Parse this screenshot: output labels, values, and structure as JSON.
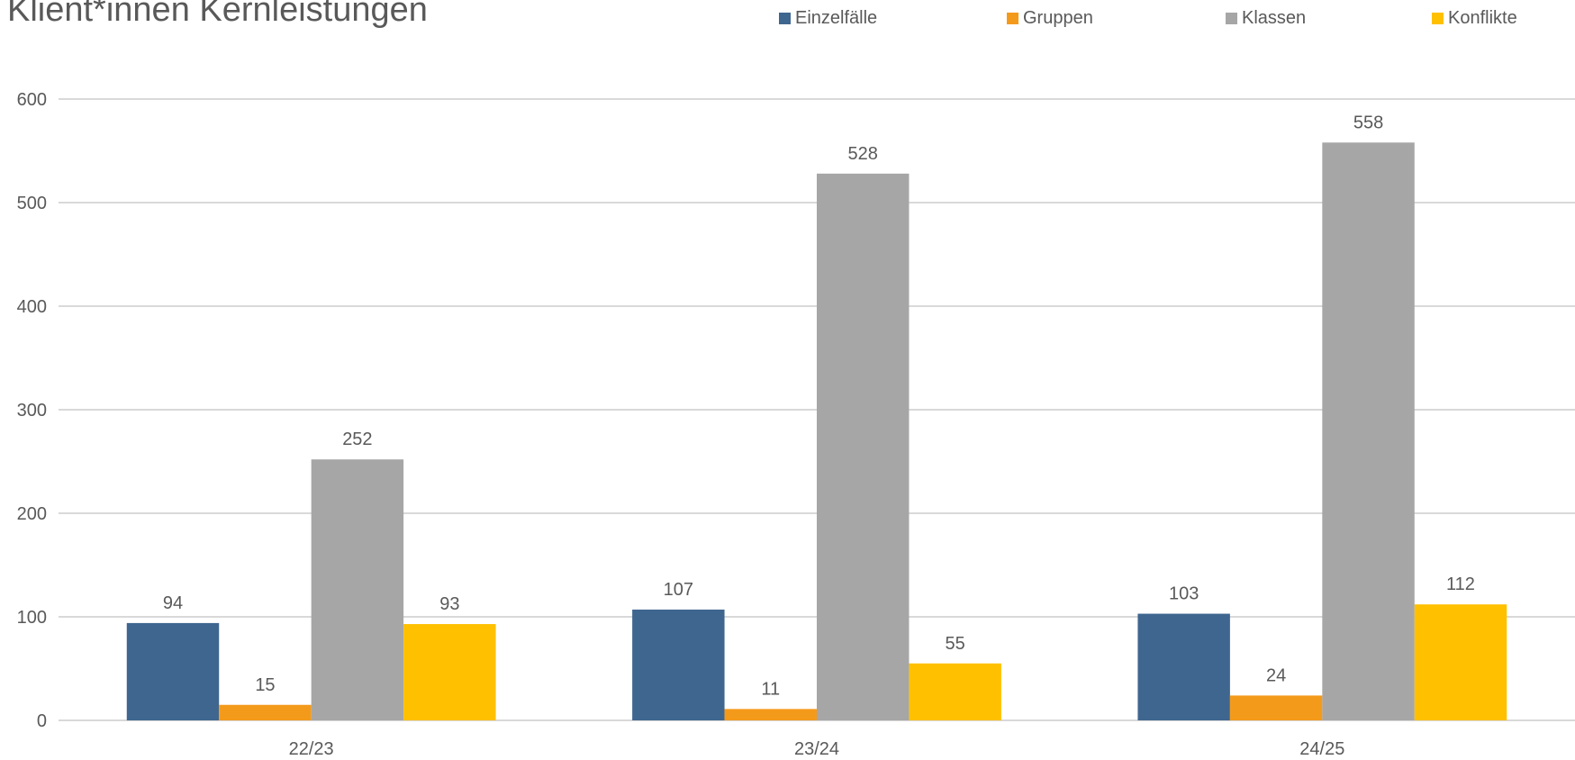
{
  "chart_data": {
    "type": "bar",
    "title": "Klient*innen Kernleistungen",
    "subtitle": "",
    "xlabel": "",
    "ylabel": "",
    "ylim": [
      0,
      600
    ],
    "y_ticks": [
      0,
      100,
      200,
      300,
      400,
      500,
      600
    ],
    "grid": true,
    "legend_position": "top-right",
    "categories": [
      "22/23",
      "23/24",
      "24/25"
    ],
    "series": [
      {
        "name": "Einzelfälle",
        "color": "#3F668F",
        "values": [
          94,
          107,
          103
        ]
      },
      {
        "name": "Gruppen",
        "color": "#F49A1B",
        "values": [
          15,
          11,
          24
        ]
      },
      {
        "name": "Klassen",
        "color": "#A6A6A6",
        "values": [
          252,
          528,
          558
        ]
      },
      {
        "name": "Konflikte",
        "color": "#FFC000",
        "values": [
          93,
          55,
          112
        ]
      }
    ]
  },
  "colors": {
    "background": "#FFFFFF",
    "grid": "#D9D9D9",
    "axis_text": "#595959",
    "title_text": "#595959"
  }
}
